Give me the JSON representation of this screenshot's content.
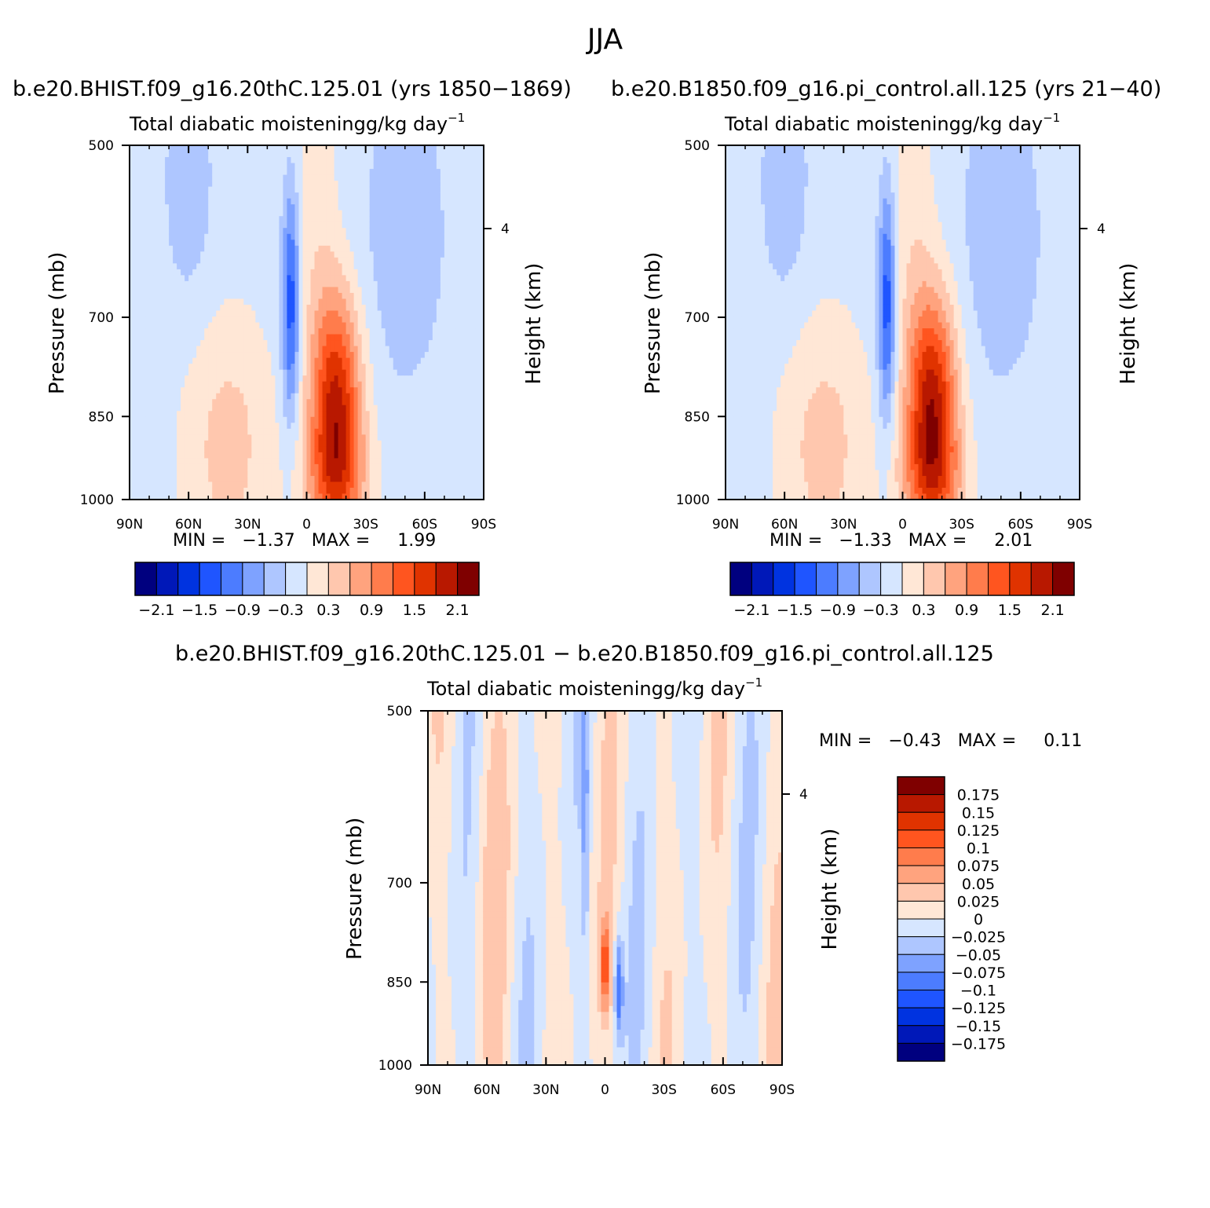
{
  "figure": {
    "title": "JJA",
    "run_a_label": "b.e20.BHIST.f09_g16.20thC.125.01 (yrs 1850−1869)",
    "run_b_label": "b.e20.B1850.f09_g16.pi_control.all.125 (yrs 21−40)",
    "diff_label": "b.e20.BHIST.f09_g16.20thC.125.01 − b.e20.B1850.f09_g16.pi_control.all.125"
  },
  "panels": [
    {
      "title": "Total diabatic moistening",
      "units": "g/kg day",
      "units_exp": "−1",
      "ylabel": "Pressure (mb)",
      "y2label": "Height (km)",
      "min_text": "MIN =   −1.37   MAX =     1.99"
    },
    {
      "title": "Total diabatic moistening",
      "units": "g/kg day",
      "units_exp": "−1",
      "ylabel": "Pressure (mb)",
      "y2label": "Height (km)",
      "min_text": "MIN =   −1.33   MAX =     2.01"
    },
    {
      "title": "Total diabatic moistening",
      "units": "g/kg day",
      "units_exp": "−1",
      "ylabel": "Pressure (mb)",
      "y2label": "Height (km)",
      "min_text": "MIN =   −0.43   MAX =     0.11"
    }
  ],
  "colors": {
    "seq16": [
      "#00007f",
      "#0018b8",
      "#0033e0",
      "#1f55ff",
      "#4c7cff",
      "#7ea2ff",
      "#aec6ff",
      "#d6e6ff",
      "#ffe7d6",
      "#ffc7ae",
      "#ffa37e",
      "#ff7c4c",
      "#ff551f",
      "#e03300",
      "#b81800",
      "#7f0000"
    ]
  },
  "colorbar": {
    "labels": [
      "−2.1",
      "−1.5",
      "−0.9",
      "−0.3",
      "0.3",
      "0.9",
      "1.5",
      "2.1"
    ]
  },
  "diff_colorbar": {
    "labels": [
      "0.175",
      "0.15",
      "0.125",
      "0.1",
      "0.075",
      "0.05",
      "0.025",
      "0",
      "−0.025",
      "−0.05",
      "−0.075",
      "−0.1",
      "−0.125",
      "−0.15",
      "−0.175"
    ]
  },
  "chart_data": [
    {
      "type": "heatmap",
      "title": "Total diabatic moistening g/kg day−1",
      "x_ticks": [
        "90N",
        "60N",
        "30N",
        "0",
        "30S",
        "60S",
        "90S"
      ],
      "y_ticks": [
        "500",
        "700",
        "850",
        "1000"
      ],
      "y2_ticks": [
        "4"
      ],
      "ylabel": "Pressure (mb)",
      "y2label": "Height (km)",
      "xlim": [
        90,
        -90
      ],
      "ylim": [
        1000,
        500
      ],
      "min": -1.37,
      "max": 1.99,
      "contour_levels": [
        -2.1,
        -1.8,
        -1.5,
        -1.2,
        -0.9,
        -0.6,
        -0.3,
        0,
        0.3,
        0.6,
        0.9,
        1.2,
        1.5,
        1.8,
        2.1
      ],
      "features": [
        {
          "lat": -15,
          "pressure": 850,
          "value": 1.9
        },
        {
          "lat": 8,
          "pressure": 760,
          "value": -1.3
        },
        {
          "lat": 60,
          "pressure": 560,
          "value": -0.4
        },
        {
          "lat": -50,
          "pressure": 600,
          "value": -0.4
        }
      ]
    },
    {
      "type": "heatmap",
      "title": "Total diabatic moistening g/kg day−1",
      "x_ticks": [
        "90N",
        "60N",
        "30N",
        "0",
        "30S",
        "60S",
        "90S"
      ],
      "y_ticks": [
        "500",
        "700",
        "850",
        "1000"
      ],
      "y2_ticks": [
        "4"
      ],
      "ylabel": "Pressure (mb)",
      "y2label": "Height (km)",
      "xlim": [
        90,
        -90
      ],
      "ylim": [
        1000,
        500
      ],
      "min": -1.33,
      "max": 2.01,
      "contour_levels": [
        -2.1,
        -1.8,
        -1.5,
        -1.2,
        -0.9,
        -0.6,
        -0.3,
        0,
        0.3,
        0.6,
        0.9,
        1.2,
        1.5,
        1.8,
        2.1
      ],
      "features": [
        {
          "lat": -15,
          "pressure": 850,
          "value": 2.0
        },
        {
          "lat": 8,
          "pressure": 760,
          "value": -1.3
        },
        {
          "lat": 60,
          "pressure": 560,
          "value": -0.4
        },
        {
          "lat": -50,
          "pressure": 600,
          "value": -0.4
        }
      ]
    },
    {
      "type": "heatmap",
      "title": "Total diabatic moistening g/kg day−1",
      "x_ticks": [
        "90N",
        "60N",
        "30N",
        "0",
        "30S",
        "60S",
        "90S"
      ],
      "y_ticks": [
        "500",
        "700",
        "850",
        "1000"
      ],
      "y2_ticks": [
        "4"
      ],
      "ylabel": "Pressure (mb)",
      "y2label": "Height (km)",
      "xlim": [
        90,
        -90
      ],
      "ylim": [
        1000,
        500
      ],
      "min": -0.43,
      "max": 0.11,
      "contour_levels": [
        -0.175,
        -0.15,
        -0.125,
        -0.1,
        -0.075,
        -0.05,
        -0.025,
        0,
        0.025,
        0.05,
        0.075,
        0.1,
        0.125,
        0.15,
        0.175
      ],
      "features": [
        {
          "lat": 0,
          "pressure": 840,
          "value": 0.1
        },
        {
          "lat": -7,
          "pressure": 870,
          "value": -0.1
        },
        {
          "lat": 60,
          "pressure": 700,
          "value": 0.02
        }
      ]
    }
  ]
}
